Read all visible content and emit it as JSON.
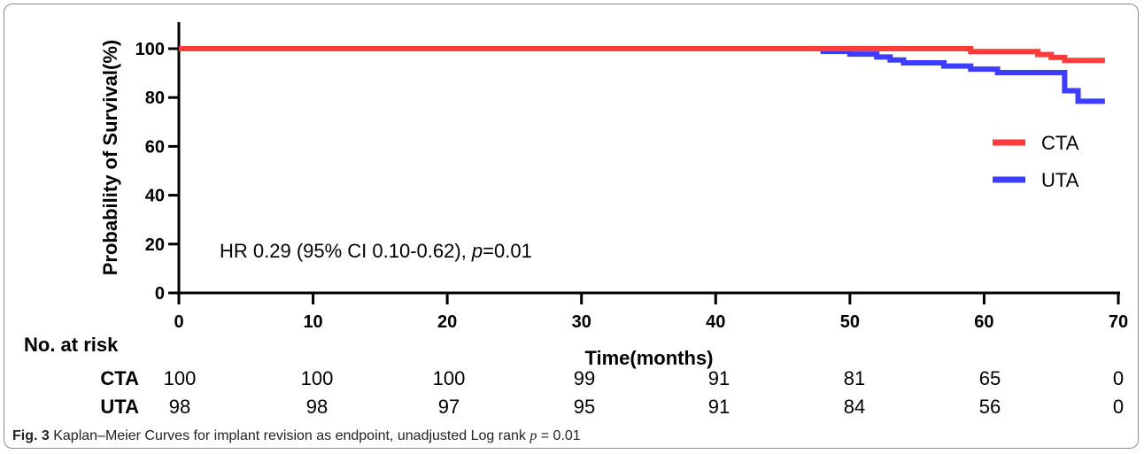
{
  "chart_data": {
    "type": "line",
    "subtype": "kaplan-meier step",
    "ylabel": "Probability of Survival(%)",
    "xlabel": "Time(months)",
    "xlim": [
      0,
      70
    ],
    "ylim": [
      0,
      100
    ],
    "xticks": [
      "0",
      "10",
      "20",
      "30",
      "40",
      "50",
      "60",
      "70"
    ],
    "yticks": [
      "0",
      "20",
      "40",
      "60",
      "80",
      "100"
    ],
    "legend_position": "right",
    "grid": false,
    "annotation": {
      "prefix": "HR 0.29 (95% CI 0.10-0.62), ",
      "p": "p",
      "suffix": "=0.01"
    },
    "series": [
      {
        "name": "CTA",
        "color": "#ff3b3b",
        "x": [
          0,
          59,
          64,
          65,
          66,
          69
        ],
        "y": [
          100,
          98.8,
          97.6,
          96.4,
          95.2,
          95.2
        ]
      },
      {
        "name": "UTA",
        "color": "#3d3dff",
        "x": [
          0,
          48,
          50,
          52,
          53,
          54,
          57,
          59,
          61,
          66,
          67,
          69
        ],
        "y": [
          100,
          98.9,
          97.8,
          96.6,
          95.4,
          94.2,
          92.9,
          91.6,
          90.2,
          82.8,
          78.5,
          78.5
        ]
      }
    ],
    "risk_table": {
      "title": "No. at risk",
      "rows": [
        {
          "label": "CTA",
          "values": [
            "100",
            "100",
            "100",
            "99",
            "91",
            "81",
            "65",
            "0"
          ]
        },
        {
          "label": "UTA",
          "values": [
            "98",
            "98",
            "97",
            "95",
            "91",
            "84",
            "56",
            "0"
          ]
        }
      ]
    }
  },
  "caption": {
    "fig_label": "Fig. 3",
    "text": " Kaplan–Meier Curves for implant revision as endpoint, unadjusted Log rank ",
    "p": "p",
    "suffix": " = 0.01"
  }
}
